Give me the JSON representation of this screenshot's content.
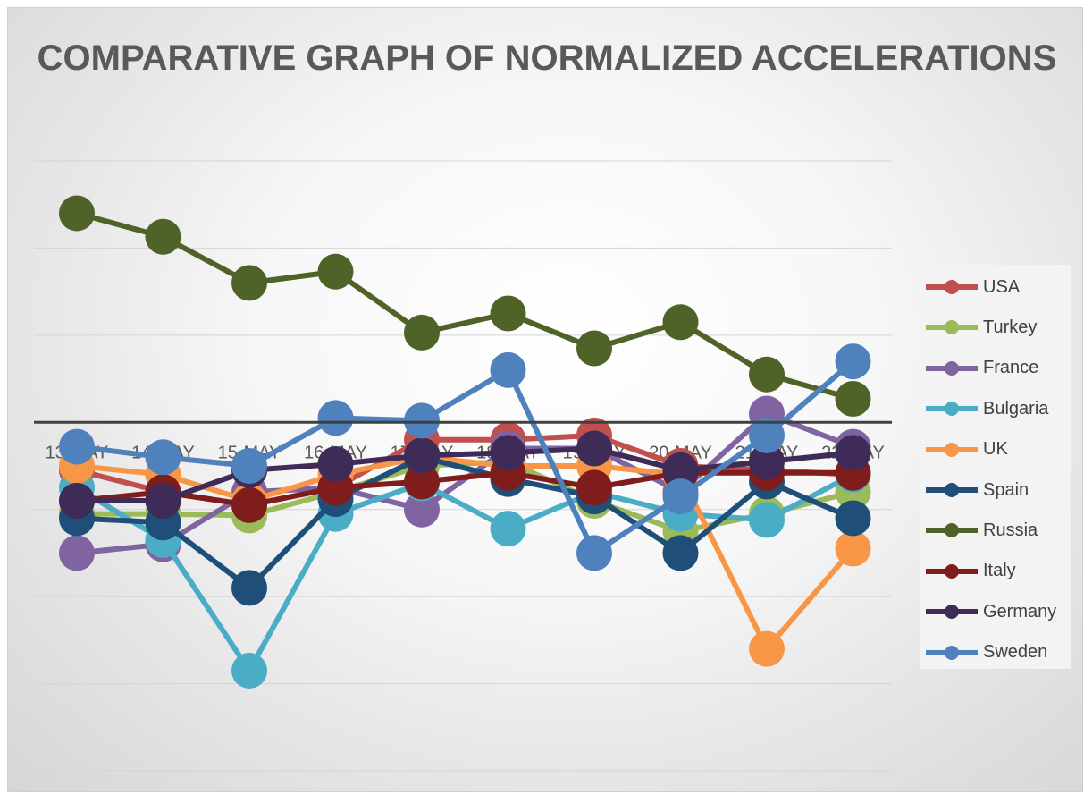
{
  "chart_data": {
    "type": "line",
    "title": "COMPARATIVE GRAPH OF NORMALIZED ACCELERATIONS",
    "xlabel": "",
    "ylabel": "",
    "categories": [
      "13-MAY",
      "14-MAY",
      "15-MAY",
      "16-MAY",
      "17-MAY",
      "18-MAY",
      "19-MAY",
      "20-MAY",
      "21-MAY",
      "22-MAY"
    ],
    "ylim": [
      -4,
      3
    ],
    "ytick_step": 1,
    "grid": true,
    "legend_position": "right",
    "series": [
      {
        "name": "USA",
        "color": "#C0504D",
        "values": [
          -0.55,
          -0.8,
          -0.95,
          -0.75,
          -0.2,
          -0.2,
          -0.15,
          -0.5,
          -0.55,
          -0.6
        ]
      },
      {
        "name": "Turkey",
        "color": "#9BBB59",
        "values": [
          -1.05,
          -1.05,
          -1.07,
          -0.8,
          -0.5,
          -0.45,
          -0.9,
          -1.25,
          -1.05,
          -0.8
        ]
      },
      {
        "name": "France",
        "color": "#8064A2",
        "values": [
          -1.5,
          -1.4,
          -0.8,
          -0.75,
          -1.0,
          -0.3,
          -0.3,
          -0.8,
          0.1,
          -0.28
        ]
      },
      {
        "name": "Bulgaria",
        "color": "#4BACC6",
        "values": [
          -0.75,
          -1.35,
          -2.85,
          -1.05,
          -0.7,
          -1.22,
          -0.8,
          -1.05,
          -1.12,
          -0.6
        ]
      },
      {
        "name": "UK",
        "color": "#F79646",
        "values": [
          -0.5,
          -0.6,
          -0.9,
          -0.6,
          -0.4,
          -0.5,
          -0.5,
          -0.6,
          -2.6,
          -1.45
        ]
      },
      {
        "name": "Spain",
        "color": "#1F4E79",
        "values": [
          -1.1,
          -1.15,
          -1.9,
          -0.88,
          -0.4,
          -0.65,
          -0.85,
          -1.5,
          -0.68,
          -1.1
        ]
      },
      {
        "name": "Russia",
        "color": "#4F6228",
        "values": [
          2.4,
          2.13,
          1.6,
          1.73,
          1.03,
          1.25,
          0.85,
          1.15,
          0.55,
          0.27
        ]
      },
      {
        "name": "Italy",
        "color": "#7F1D1D",
        "values": [
          -0.9,
          -0.8,
          -0.95,
          -0.75,
          -0.68,
          -0.58,
          -0.75,
          -0.58,
          -0.58,
          -0.58
        ]
      },
      {
        "name": "Germany",
        "color": "#3F2B57",
        "values": [
          -0.9,
          -0.9,
          -0.55,
          -0.48,
          -0.38,
          -0.35,
          -0.3,
          -0.55,
          -0.45,
          -0.35
        ]
      },
      {
        "name": "Sweden",
        "color": "#4F81BD",
        "values": [
          -0.28,
          -0.4,
          -0.5,
          0.05,
          0.02,
          0.6,
          -1.5,
          -0.85,
          -0.15,
          0.7
        ]
      }
    ]
  }
}
